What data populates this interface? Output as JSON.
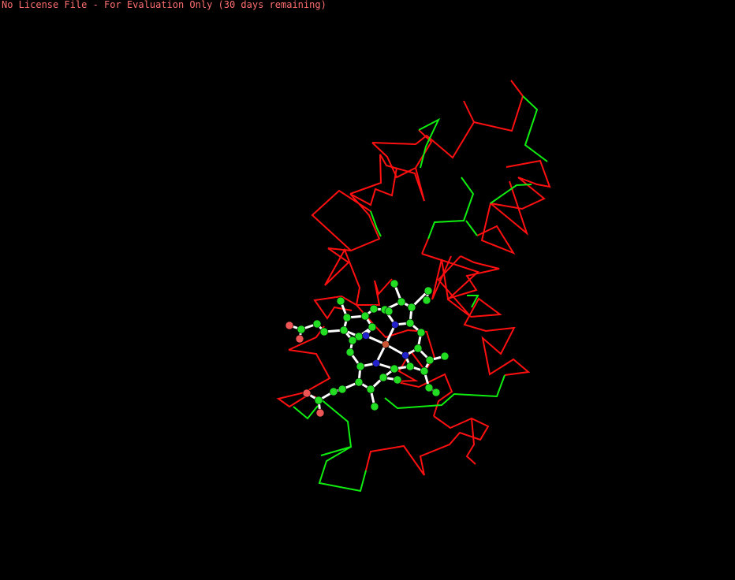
{
  "license_banner": "No License File - For Evaluation Only (30 days remaining)",
  "colors": {
    "background": "#000000",
    "banner_text": "#ff6f6f",
    "helix": "#ff1010",
    "coil": "#10ee10",
    "carbon": "#22dd22",
    "oxygen": "#ee5555",
    "nitrogen": "#2222cc",
    "iron": "#cc5533",
    "bond": "#ffffff"
  },
  "legend_semantics": {
    "backbone": "c-alpha-trace",
    "ligand": "heme-ball-and-stick"
  }
}
